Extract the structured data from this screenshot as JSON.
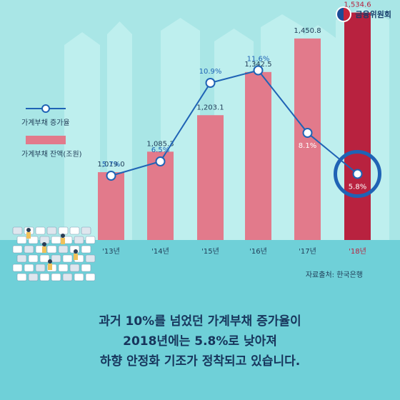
{
  "logo": {
    "text": "금융위원회"
  },
  "legend": {
    "rate_label": "가계부채 증가율",
    "balance_label": "가계부채 잔액(조원)"
  },
  "source": "자료출처: 한국은행",
  "caption_lines": [
    "과거 10%를 넘었던 가계부채 증가율이",
    "2018년에는 5.8%로 낮아져",
    "하향 안정화 기조가 정착되고 있습니다."
  ],
  "colors": {
    "bar": "#e27a8b",
    "bar_highlight": "#b8223f",
    "line": "#1f63b5",
    "highlight_ring": "#1f63b5",
    "ground": "#6fd0d8",
    "building": "#c2f0ef"
  },
  "chart_data": {
    "type": "bar",
    "categories": [
      "'13년",
      "'14년",
      "'15년",
      "'16년",
      "'17년",
      "'18년"
    ],
    "series": [
      {
        "name": "가계부채 잔액(조원)",
        "type": "bar",
        "values": [
          1019.0,
          1085.3,
          1203.1,
          1342.5,
          1450.8,
          1534.6
        ],
        "labels": [
          "1,019.0",
          "1,085.3",
          "1,203.1",
          "1,342.5",
          "1,450.8",
          "1,534.6"
        ]
      },
      {
        "name": "가계부채 증가율",
        "type": "line",
        "values": [
          5.7,
          6.5,
          10.9,
          11.6,
          8.1,
          5.8
        ],
        "labels": [
          "5.7%",
          "6.5%",
          "10.9%",
          "11.6%",
          "8.1%",
          "5.8%"
        ]
      }
    ],
    "highlight_index": 5,
    "legend_position": "left"
  }
}
